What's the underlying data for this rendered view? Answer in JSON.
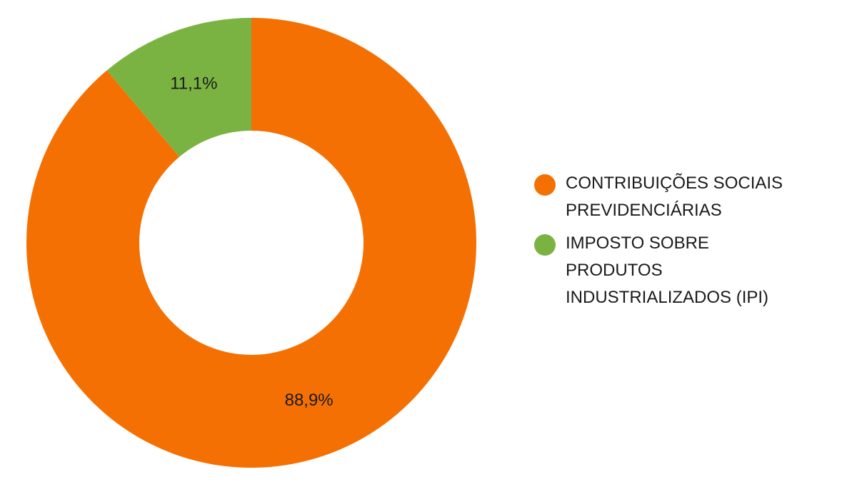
{
  "chart_data": {
    "type": "pie",
    "donut": true,
    "title": "",
    "legend_position": "right",
    "slices": [
      {
        "name": "CONTRIBUIÇÕES SOCIAIS PREVIDENCIÁRIAS",
        "value": 88.9,
        "label": "88,9%",
        "color": "#f57002"
      },
      {
        "name": "IMPOSTO SOBRE PRODUTOS INDUSTRIALIZADOS (IPI)",
        "value": 11.1,
        "label": "11,1%",
        "color": "#7bb342"
      }
    ]
  }
}
